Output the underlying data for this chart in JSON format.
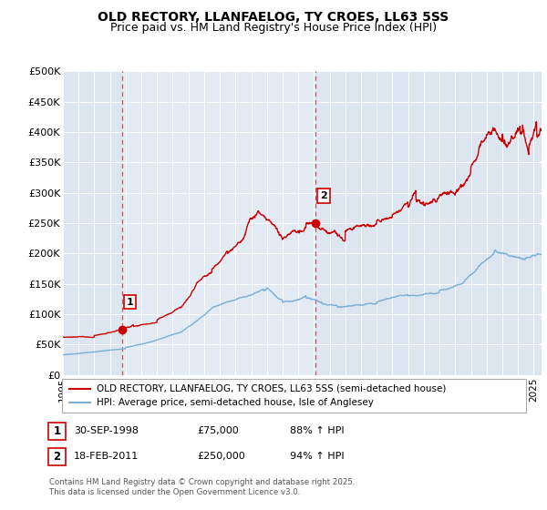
{
  "title": "OLD RECTORY, LLANFAELOG, TY CROES, LL63 5SS",
  "subtitle": "Price paid vs. HM Land Registry's House Price Index (HPI)",
  "xlim": [
    1995.0,
    2025.5
  ],
  "ylim": [
    0,
    500000
  ],
  "yticks": [
    0,
    50000,
    100000,
    150000,
    200000,
    250000,
    300000,
    350000,
    400000,
    450000,
    500000
  ],
  "ytick_labels": [
    "£0",
    "£50K",
    "£100K",
    "£150K",
    "£200K",
    "£250K",
    "£300K",
    "£350K",
    "£400K",
    "£450K",
    "£500K"
  ],
  "xticks": [
    1995,
    1996,
    1997,
    1998,
    1999,
    2000,
    2001,
    2002,
    2003,
    2004,
    2005,
    2006,
    2007,
    2008,
    2009,
    2010,
    2011,
    2012,
    2013,
    2014,
    2015,
    2016,
    2017,
    2018,
    2019,
    2020,
    2021,
    2022,
    2023,
    2024,
    2025
  ],
  "background_color": "#ffffff",
  "plot_bg_color": "#dce6f1",
  "grid_color": "#ffffff",
  "red_line_color": "#cc0000",
  "blue_line_color": "#7bafd4",
  "sale1_x": 1998.75,
  "sale1_y": 75000,
  "sale1_label": "1",
  "sale1_date": "30-SEP-1998",
  "sale1_price": "£75,000",
  "sale1_hpi": "88% ↑ HPI",
  "sale2_x": 2011.12,
  "sale2_y": 250000,
  "sale2_label": "2",
  "sale2_date": "18-FEB-2011",
  "sale2_price": "£250,000",
  "sale2_hpi": "94% ↑ HPI",
  "legend_line1": "OLD RECTORY, LLANFAELOG, TY CROES, LL63 5SS (semi-detached house)",
  "legend_line2": "HPI: Average price, semi-detached house, Isle of Anglesey",
  "footnote": "Contains HM Land Registry data © Crown copyright and database right 2025.\nThis data is licensed under the Open Government Licence v3.0.",
  "title_fontsize": 10,
  "subtitle_fontsize": 9
}
